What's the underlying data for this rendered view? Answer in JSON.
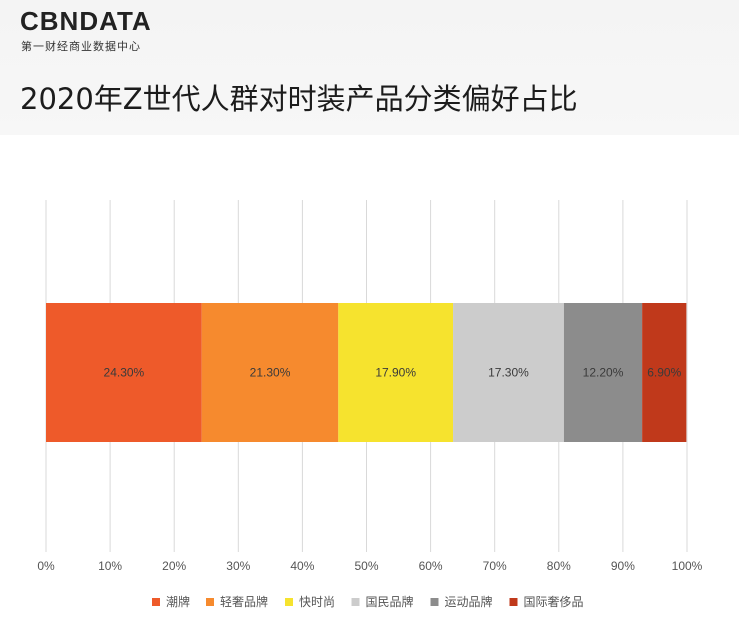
{
  "brand": {
    "logo": "CBNDATA",
    "subtitle": "第一财经商业数据中心"
  },
  "chart_data": {
    "type": "bar",
    "orientation": "horizontal-stacked",
    "title": "2020年Z世代人群对时装产品分类偏好占比",
    "x_ticks": [
      "0%",
      "10%",
      "20%",
      "30%",
      "40%",
      "50%",
      "60%",
      "70%",
      "80%",
      "90%",
      "100%"
    ],
    "xlim": [
      0,
      100
    ],
    "grid": true,
    "legend_position": "bottom",
    "series": [
      {
        "name": "潮牌",
        "value": 24.3,
        "label": "24.30%",
        "color": "#ee5a2a"
      },
      {
        "name": "轻奢品牌",
        "value": 21.3,
        "label": "21.30%",
        "color": "#f68a2e"
      },
      {
        "name": "快时尚",
        "value": 17.9,
        "label": "17.90%",
        "color": "#f6e32e"
      },
      {
        "name": "国民品牌",
        "value": 17.3,
        "label": "17.30%",
        "color": "#cccccc"
      },
      {
        "name": "运动品牌",
        "value": 12.2,
        "label": "12.20%",
        "color": "#8c8c8c"
      },
      {
        "name": "国际奢侈品",
        "value": 6.9,
        "label": "6.90%",
        "color": "#c0391b"
      }
    ]
  }
}
